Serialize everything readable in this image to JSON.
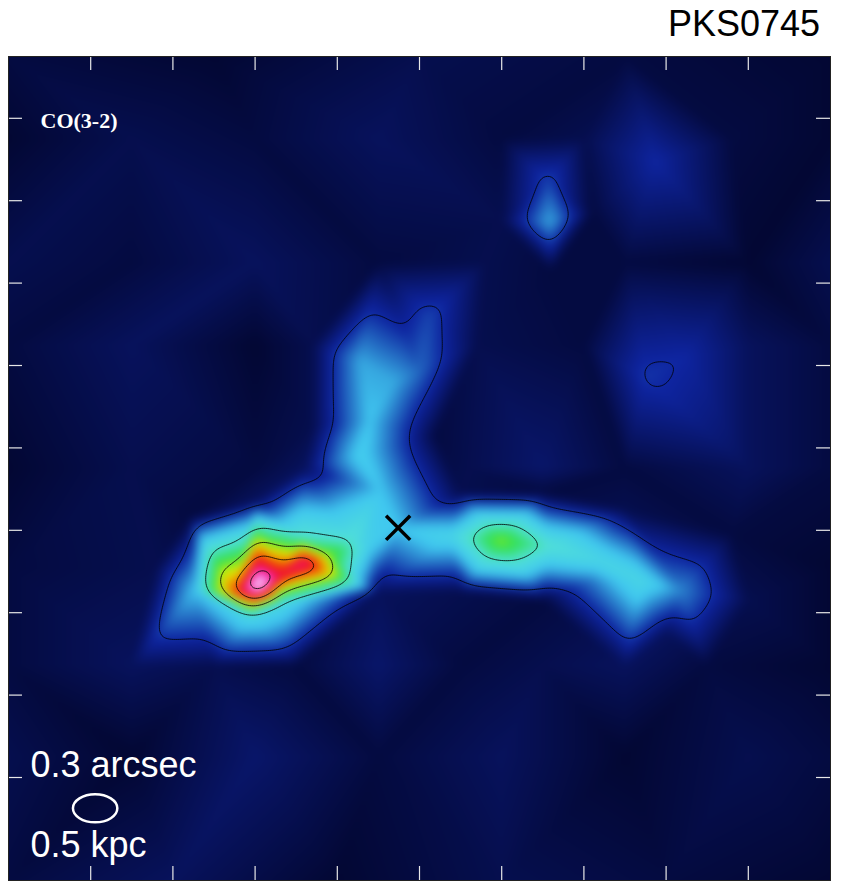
{
  "chart_data": {
    "type": "heatmap",
    "title": "PKS0745",
    "annotations": [
      "CO(3-2)",
      "0.3 arcsec",
      "0.5 kpc"
    ],
    "points": [
      [
        3.04,
        3.58,
        10
      ],
      [
        3.59,
        3.85,
        8
      ],
      [
        3.3,
        3.7,
        7.5
      ],
      [
        2.75,
        3.5,
        6.5
      ],
      [
        2.27,
        3.52,
        2
      ],
      [
        2.94,
        3.21,
        2.5
      ],
      [
        3.55,
        4.18,
        3
      ],
      [
        3.9,
        3.95,
        4.5
      ],
      [
        4.16,
        4.12,
        3
      ],
      [
        4.4,
        4.06,
        2.2
      ],
      [
        3.3,
        3.35,
        2.5
      ],
      [
        4.74,
        4.28,
        2
      ],
      [
        5.38,
        4.18,
        2.4
      ],
      [
        5.99,
        4.12,
        4.5
      ],
      [
        6.59,
        4.06,
        3
      ],
      [
        7.2,
        3.88,
        2.5
      ],
      [
        7.69,
        3.64,
        2.5
      ],
      [
        8.18,
        3.52,
        1.6
      ],
      [
        7.08,
        3.64,
        1.5
      ],
      [
        4.53,
        4.73,
        2
      ],
      [
        4.28,
        5.15,
        2.2
      ],
      [
        4.4,
        5.58,
        2
      ],
      [
        4.71,
        6.06,
        1.8
      ],
      [
        4.28,
        6.3,
        1.8
      ],
      [
        5.01,
        6.18,
        1.4
      ],
      [
        6.59,
        8.0,
        1.8
      ],
      [
        6.57,
        8.48,
        1.2
      ],
      [
        5.13,
        6.85,
        1.2
      ],
      [
        4.83,
        6.67,
        1.0
      ],
      [
        7.75,
        6.12,
        1.1
      ],
      [
        8.24,
        6.36,
        1.0
      ],
      [
        7.87,
        8.73,
        1.0
      ],
      [
        3.0,
        4.6,
        0.5
      ],
      [
        5.5,
        4.7,
        0.4
      ],
      [
        6.5,
        4.7,
        0.3
      ],
      [
        7.5,
        4.5,
        0.4
      ],
      [
        8.8,
        4.2,
        0.3
      ],
      [
        9.0,
        3.4,
        0.4
      ],
      [
        8.0,
        3.0,
        0.5
      ],
      [
        6.5,
        3.4,
        0.3
      ],
      [
        5.5,
        3.5,
        0.4
      ],
      [
        4.5,
        3.5,
        0.5
      ],
      [
        1.8,
        3.8,
        0.4
      ],
      [
        2.2,
        4.4,
        0.3
      ],
      [
        3.7,
        5.5,
        0.4
      ],
      [
        5.2,
        5.4,
        0.3
      ],
      [
        7.1,
        8.1,
        0.3
      ],
      [
        6.0,
        8.0,
        0.4
      ],
      [
        6.6,
        7.4,
        0.3
      ],
      [
        0,
        0,
        0.3
      ],
      [
        2,
        0,
        0.5
      ],
      [
        4,
        0,
        0.2
      ],
      [
        6,
        0,
        0.4
      ],
      [
        8,
        0,
        0.3
      ],
      [
        10,
        0,
        0.2
      ],
      [
        0,
        1.5,
        0.4
      ],
      [
        1.5,
        1.5,
        0.2
      ],
      [
        3,
        1.5,
        0.6
      ],
      [
        4.5,
        1.5,
        0.3
      ],
      [
        6,
        1.5,
        0.5
      ],
      [
        7.5,
        1.5,
        0.2
      ],
      [
        9,
        1.5,
        0.4
      ],
      [
        10,
        1.5,
        0.3
      ],
      [
        0,
        2.6,
        0.3
      ],
      [
        1.5,
        2.6,
        0.5
      ],
      [
        2.5,
        2.6,
        0.4
      ],
      [
        3.5,
        2.6,
        0.3
      ],
      [
        4.5,
        2.6,
        0.6
      ],
      [
        5.5,
        2.6,
        0.3
      ],
      [
        6.5,
        2.6,
        0.4
      ],
      [
        7.5,
        2.6,
        0.5
      ],
      [
        8.5,
        2.6,
        0.3
      ],
      [
        10,
        2.6,
        0.2
      ],
      [
        0,
        3.8,
        0.3
      ],
      [
        10,
        3.8,
        0.2
      ],
      [
        0,
        5,
        0.2
      ],
      [
        1.5,
        5,
        0.4
      ],
      [
        3,
        5,
        0.3
      ],
      [
        3.6,
        5,
        0.5
      ],
      [
        5.6,
        5,
        0.4
      ],
      [
        6.5,
        5,
        0.6
      ],
      [
        7.5,
        5,
        0.3
      ],
      [
        9,
        5,
        0.5
      ],
      [
        10,
        5,
        0.3
      ],
      [
        0,
        6.5,
        0.3
      ],
      [
        1.5,
        6.5,
        0.5
      ],
      [
        3,
        6.5,
        0.2
      ],
      [
        3.7,
        6.5,
        0.4
      ],
      [
        5.7,
        6.5,
        0.4
      ],
      [
        7,
        6.5,
        0.3
      ],
      [
        9,
        6.5,
        0.5
      ],
      [
        10,
        6.5,
        0.3
      ],
      [
        0,
        7.5,
        0.4
      ],
      [
        1.5,
        7.5,
        0.3
      ],
      [
        3,
        7.5,
        0.5
      ],
      [
        4.5,
        7.5,
        0.3
      ],
      [
        5.8,
        7.5,
        0.4
      ],
      [
        7.5,
        7.5,
        0.3
      ],
      [
        9,
        7.5,
        0.2
      ],
      [
        10,
        7.5,
        0.4
      ],
      [
        0,
        9,
        0.2
      ],
      [
        1.5,
        9,
        0.4
      ],
      [
        3,
        9,
        0.3
      ],
      [
        4.5,
        9,
        0.5
      ],
      [
        6,
        9,
        0.3
      ],
      [
        7,
        9,
        0.4
      ],
      [
        8.8,
        9,
        0.3
      ],
      [
        10,
        9,
        0.2
      ],
      [
        0,
        10,
        0.3
      ],
      [
        2.5,
        10,
        0.2
      ],
      [
        5,
        10,
        0.4
      ],
      [
        7.5,
        10,
        0.3
      ],
      [
        10,
        10,
        0.2
      ]
    ],
    "zlim": [
      0,
      10
    ],
    "contours": [
      1,
      3,
      4.5,
      6,
      7.5,
      9
    ],
    "center": {
      "x": 4.74,
      "y": 4.28,
      "marker": "x"
    },
    "beam": {
      "x": 1.06,
      "y": 0.87,
      "width": 0.54,
      "height": 0.34
    },
    "xlim": [
      0,
      10
    ],
    "ylim": [
      0,
      10
    ],
    "xticks": [
      1,
      2,
      3,
      4,
      5,
      6,
      7,
      8,
      9
    ],
    "yticks": [
      1.25,
      2.25,
      3.25,
      4.25,
      5.25,
      6.25,
      7.25,
      8.25,
      9.25
    ],
    "tick_labels": false,
    "grid": false
  }
}
